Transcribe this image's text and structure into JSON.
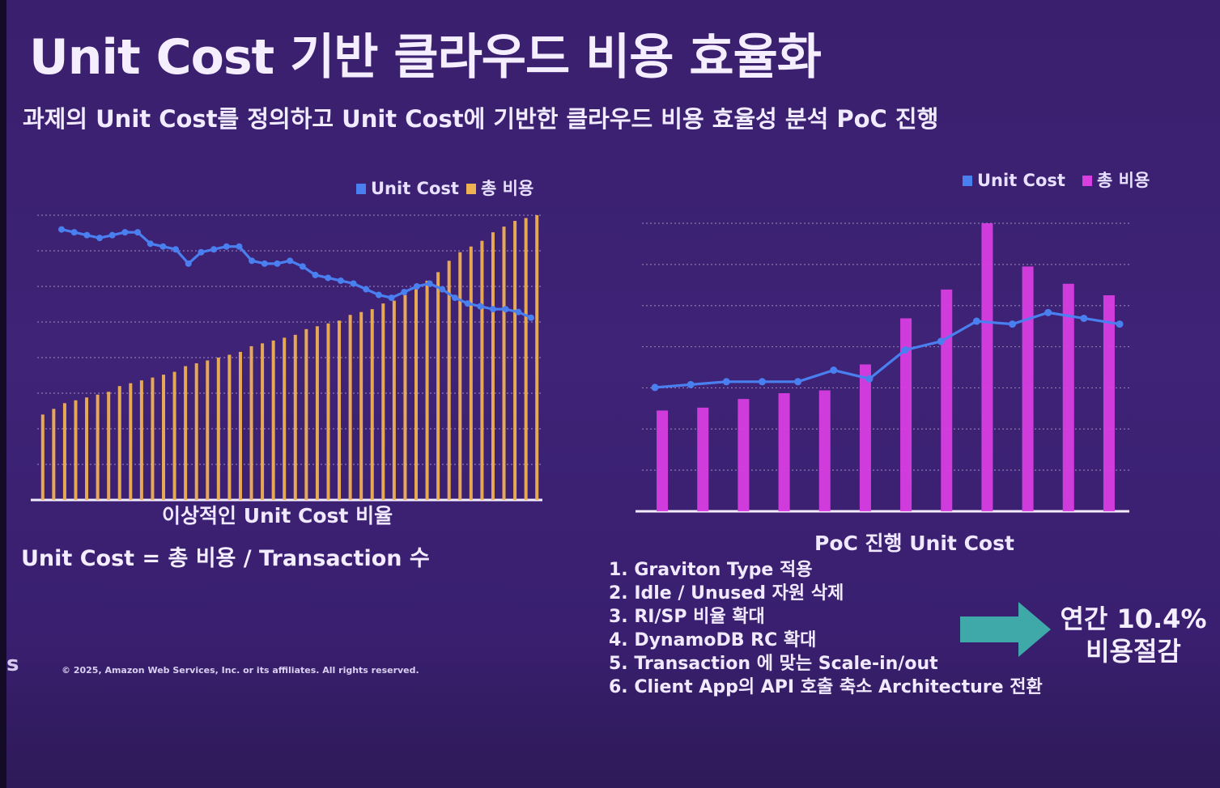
{
  "slide": {
    "title": "Unit Cost 기반 클라우드 비용 효율화",
    "subtitle": "과제의 Unit Cost를 정의하고 Unit Cost에 기반한 클라우드 비용 효율성 분석 PoC 진행",
    "formula": "Unit Cost = 총 비용 / Transaction 수",
    "steps": [
      "1. Graviton Type 적용",
      "2. Idle / Unused 자원 삭제",
      "3. RI/SP 비율 확대",
      "4. DynamoDB RC 확대",
      "5. Transaction 에 맞는 Scale-in/out",
      "6. Client App의 API 호출 축소 Architecture 전환"
    ],
    "savings_line1": "연간 10.4%",
    "savings_line2": "비용절감",
    "copyright": "© 2025, Amazon Web Services, Inc. or its affiliates. All rights reserved.",
    "aws_mark": "s",
    "arrow_color": "#3fa8a8"
  },
  "chart_data": [
    {
      "type": "bar",
      "caption": "이상적인 Unit Cost 비율",
      "legend": [
        "Unit Cost",
        "총 비용"
      ],
      "colors": {
        "unit_cost": "#4a7ff0",
        "total_cost": "#f0b054",
        "grid": "#8a7bb0"
      },
      "ylim": [
        0,
        100
      ],
      "series": [
        {
          "name": "총 비용",
          "type": "bar",
          "values": [
            30,
            32,
            34,
            35,
            36,
            37,
            38,
            40,
            41,
            42,
            43,
            44,
            45,
            47,
            48,
            49,
            50,
            51,
            52,
            54,
            55,
            56,
            57,
            58,
            60,
            61,
            62,
            63,
            65,
            66,
            67,
            69,
            70,
            72,
            74,
            77,
            80,
            84,
            87,
            89,
            91,
            94,
            96,
            98,
            99,
            100
          ]
        },
        {
          "name": "Unit Cost",
          "type": "line",
          "values": [
            95,
            94,
            93,
            92,
            93,
            94,
            94,
            90,
            89,
            88,
            83,
            87,
            88,
            89,
            89,
            84,
            83,
            83,
            84,
            82,
            79,
            78,
            77,
            76,
            74,
            72,
            71,
            73,
            75,
            76,
            74,
            71,
            69,
            68,
            67,
            67,
            66,
            64
          ]
        }
      ]
    },
    {
      "type": "bar",
      "caption": "PoC 진행 Unit Cost",
      "legend": [
        "Unit Cost",
        "총 비용"
      ],
      "colors": {
        "unit_cost": "#4a7ff0",
        "total_cost": "#d83ee0",
        "grid": "#8a7bb0"
      },
      "ylim": [
        0,
        100
      ],
      "series": [
        {
          "name": "총 비용",
          "type": "bar",
          "values": [
            35,
            36,
            39,
            41,
            42,
            51,
            67,
            77,
            100,
            85,
            79,
            75
          ]
        },
        {
          "name": "Unit Cost",
          "type": "line",
          "values": [
            43,
            44,
            45,
            45,
            45,
            49,
            46,
            56,
            59,
            66,
            65,
            69,
            67,
            65
          ]
        }
      ]
    }
  ]
}
